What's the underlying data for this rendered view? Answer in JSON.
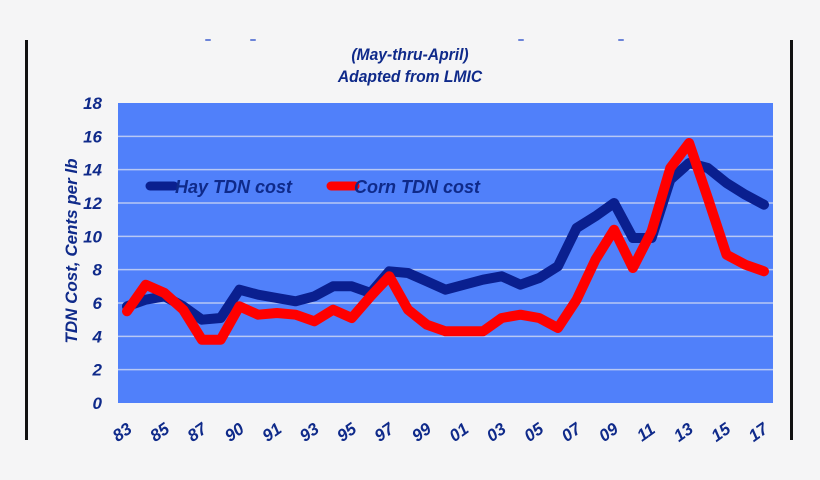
{
  "chart_data": {
    "type": "line",
    "title": "",
    "subtitle": [
      "(May-thru-April)",
      "Adapted from LMIC"
    ],
    "xlabel": "",
    "ylabel": "TDN Cost, Cents per lb",
    "ylim": [
      0,
      18
    ],
    "yticks": [
      0,
      2,
      4,
      6,
      8,
      10,
      12,
      14,
      16,
      18
    ],
    "grid": true,
    "legend_position": "upper-left-inside",
    "x": [
      1983,
      1984,
      1985,
      1986,
      1987,
      1988,
      1989,
      1990,
      1991,
      1992,
      1993,
      1994,
      1995,
      1996,
      1997,
      1998,
      1999,
      2000,
      2001,
      2002,
      2003,
      2004,
      2005,
      2006,
      2007,
      2008,
      2009,
      2010,
      2011,
      2012,
      2013,
      2014,
      2015,
      2016,
      2017
    ],
    "xtick_labels": [
      "83",
      "85",
      "87",
      "90",
      "91",
      "93",
      "95",
      "97",
      "99",
      "01",
      "03",
      "05",
      "07",
      "09",
      "11",
      "13",
      "15",
      "17"
    ],
    "series": [
      {
        "name": "Hay TDN cost",
        "color": "#0a1f8f",
        "values": [
          5.8,
          6.2,
          6.4,
          5.8,
          5.0,
          5.1,
          6.8,
          6.5,
          6.3,
          6.1,
          6.4,
          7.0,
          7.0,
          6.6,
          7.9,
          7.8,
          7.3,
          6.8,
          7.1,
          7.4,
          7.6,
          7.1,
          7.5,
          8.2,
          10.5,
          11.2,
          12.0,
          9.9,
          9.9,
          13.4,
          14.4,
          14.1,
          13.2,
          12.5,
          11.9
        ]
      },
      {
        "name": "Corn TDN cost",
        "color": "#ff0000",
        "values": [
          5.5,
          7.1,
          6.6,
          5.6,
          3.8,
          3.8,
          5.8,
          5.3,
          5.4,
          5.3,
          4.9,
          5.6,
          5.1,
          6.4,
          7.6,
          5.6,
          4.7,
          4.3,
          4.3,
          4.3,
          5.1,
          5.3,
          5.1,
          4.5,
          6.2,
          8.6,
          10.4,
          8.1,
          10.3,
          14.1,
          15.6,
          12.3,
          8.9,
          8.3,
          7.9
        ]
      }
    ],
    "plot_bg": "#5080fa",
    "gridline_color": "#b8c8f4"
  }
}
